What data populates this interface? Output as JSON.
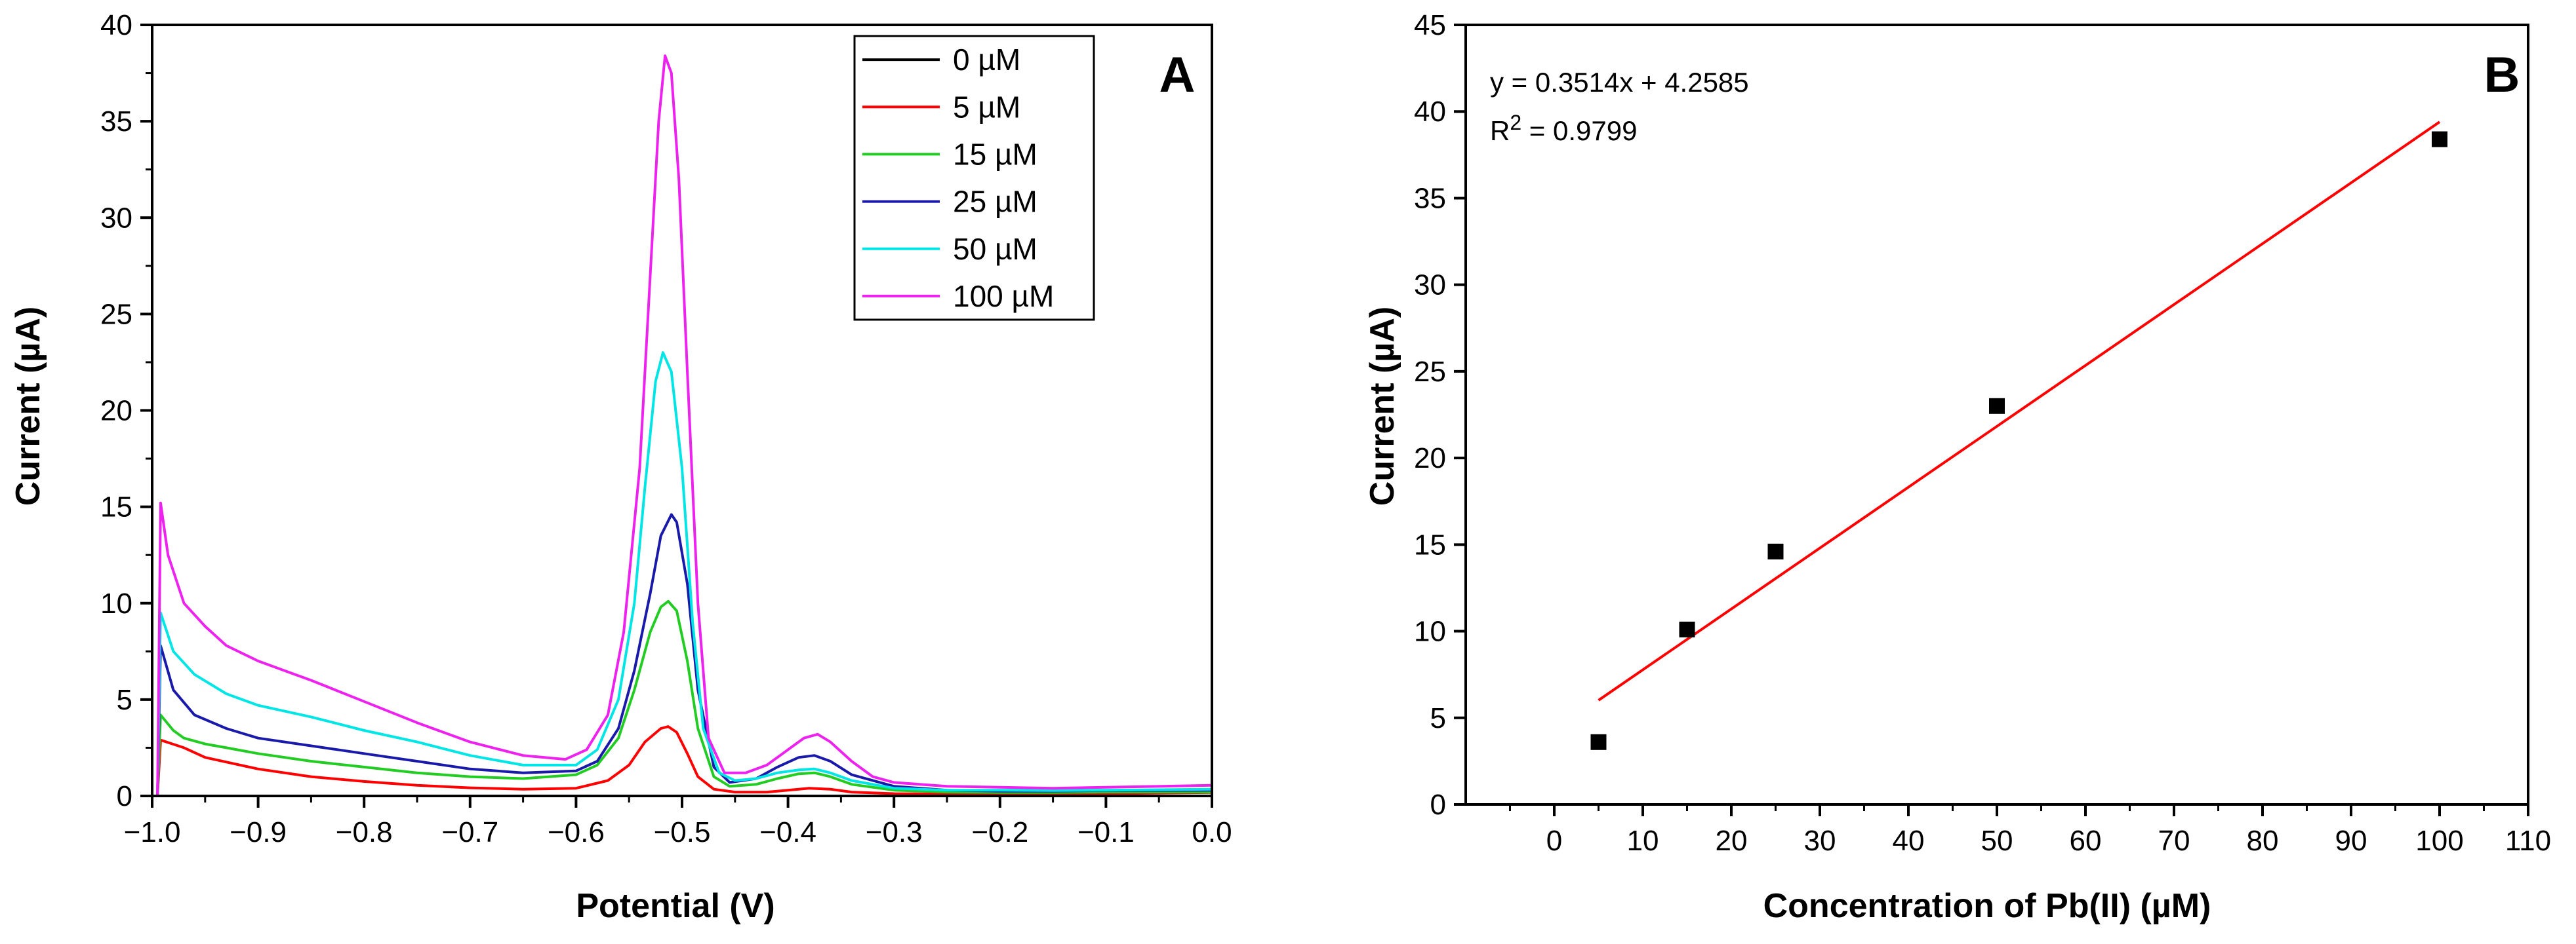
{
  "chart_data": [
    {
      "panel": "A",
      "type": "line",
      "xlabel": "Potential (V)",
      "ylabel": "Current (µA)",
      "xlim": [
        -1.0,
        0.0
      ],
      "ylim": [
        0,
        40
      ],
      "x_ticks": [
        -1.0,
        -0.9,
        -0.8,
        -0.7,
        -0.6,
        -0.5,
        -0.4,
        -0.3,
        -0.2,
        -0.1,
        0.0
      ],
      "x_tick_labels": [
        "−1.0",
        "−0.9",
        "−0.8",
        "−0.7",
        "−0.6",
        "−0.5",
        "−0.4",
        "−0.3",
        "−0.2",
        "−0.1",
        "0.0"
      ],
      "y_ticks": [
        0,
        5,
        10,
        15,
        20,
        25,
        30,
        35,
        40
      ],
      "y_tick_labels": [
        "0",
        "5",
        "10",
        "15",
        "20",
        "25",
        "30",
        "35",
        "40"
      ],
      "legend_position": "top-right",
      "series": [
        {
          "name": "0 µM",
          "color": "#000000",
          "points": [
            [
              -1.0,
              0.0
            ],
            [
              -0.9,
              0.0
            ],
            [
              -0.8,
              0.0
            ],
            [
              -0.7,
              0.0
            ],
            [
              -0.6,
              0.0
            ],
            [
              -0.5,
              0.0
            ],
            [
              -0.4,
              0.0
            ],
            [
              -0.3,
              0.0
            ],
            [
              -0.2,
              0.0
            ],
            [
              -0.1,
              0.0
            ],
            [
              0.0,
              0.0
            ]
          ]
        },
        {
          "name": "5 µM",
          "color": "#ff0000",
          "points": [
            [
              -0.995,
              0.0
            ],
            [
              -0.992,
              2.9
            ],
            [
              -0.97,
              2.5
            ],
            [
              -0.95,
              2.0
            ],
            [
              -0.9,
              1.4
            ],
            [
              -0.85,
              1.0
            ],
            [
              -0.8,
              0.75
            ],
            [
              -0.75,
              0.55
            ],
            [
              -0.7,
              0.42
            ],
            [
              -0.65,
              0.35
            ],
            [
              -0.6,
              0.4
            ],
            [
              -0.57,
              0.8
            ],
            [
              -0.55,
              1.6
            ],
            [
              -0.535,
              2.8
            ],
            [
              -0.52,
              3.5
            ],
            [
              -0.513,
              3.6
            ],
            [
              -0.505,
              3.3
            ],
            [
              -0.495,
              2.2
            ],
            [
              -0.485,
              1.0
            ],
            [
              -0.47,
              0.35
            ],
            [
              -0.45,
              0.2
            ],
            [
              -0.42,
              0.2
            ],
            [
              -0.4,
              0.3
            ],
            [
              -0.38,
              0.4
            ],
            [
              -0.36,
              0.35
            ],
            [
              -0.34,
              0.2
            ],
            [
              -0.3,
              0.12
            ],
            [
              -0.25,
              0.1
            ],
            [
              -0.2,
              0.1
            ],
            [
              -0.15,
              0.1
            ],
            [
              -0.1,
              0.12
            ],
            [
              0.0,
              0.18
            ]
          ]
        },
        {
          "name": "15 µM",
          "color": "#22cc22",
          "points": [
            [
              -0.995,
              0.0
            ],
            [
              -0.992,
              4.2
            ],
            [
              -0.98,
              3.4
            ],
            [
              -0.97,
              3.0
            ],
            [
              -0.95,
              2.7
            ],
            [
              -0.93,
              2.5
            ],
            [
              -0.9,
              2.2
            ],
            [
              -0.85,
              1.8
            ],
            [
              -0.8,
              1.5
            ],
            [
              -0.75,
              1.2
            ],
            [
              -0.7,
              1.0
            ],
            [
              -0.65,
              0.9
            ],
            [
              -0.6,
              1.1
            ],
            [
              -0.58,
              1.6
            ],
            [
              -0.56,
              3.0
            ],
            [
              -0.545,
              5.5
            ],
            [
              -0.53,
              8.5
            ],
            [
              -0.52,
              9.8
            ],
            [
              -0.513,
              10.1
            ],
            [
              -0.505,
              9.6
            ],
            [
              -0.495,
              7.0
            ],
            [
              -0.485,
              3.5
            ],
            [
              -0.47,
              1.0
            ],
            [
              -0.455,
              0.5
            ],
            [
              -0.43,
              0.6
            ],
            [
              -0.41,
              0.9
            ],
            [
              -0.39,
              1.15
            ],
            [
              -0.375,
              1.2
            ],
            [
              -0.36,
              1.0
            ],
            [
              -0.34,
              0.6
            ],
            [
              -0.3,
              0.3
            ],
            [
              -0.25,
              0.2
            ],
            [
              -0.2,
              0.18
            ],
            [
              -0.15,
              0.18
            ],
            [
              -0.1,
              0.2
            ],
            [
              0.0,
              0.2
            ]
          ]
        },
        {
          "name": "25 µM",
          "color": "#1a1aaa",
          "points": [
            [
              -0.995,
              0.0
            ],
            [
              -0.992,
              7.8
            ],
            [
              -0.98,
              5.5
            ],
            [
              -0.96,
              4.2
            ],
            [
              -0.93,
              3.5
            ],
            [
              -0.9,
              3.0
            ],
            [
              -0.85,
              2.6
            ],
            [
              -0.8,
              2.2
            ],
            [
              -0.75,
              1.8
            ],
            [
              -0.7,
              1.4
            ],
            [
              -0.65,
              1.2
            ],
            [
              -0.6,
              1.3
            ],
            [
              -0.58,
              1.8
            ],
            [
              -0.56,
              3.5
            ],
            [
              -0.545,
              6.5
            ],
            [
              -0.53,
              10.5
            ],
            [
              -0.52,
              13.5
            ],
            [
              -0.51,
              14.6
            ],
            [
              -0.505,
              14.2
            ],
            [
              -0.495,
              11.0
            ],
            [
              -0.485,
              5.5
            ],
            [
              -0.47,
              1.5
            ],
            [
              -0.455,
              0.7
            ],
            [
              -0.43,
              0.9
            ],
            [
              -0.41,
              1.5
            ],
            [
              -0.39,
              2.0
            ],
            [
              -0.375,
              2.1
            ],
            [
              -0.36,
              1.8
            ],
            [
              -0.34,
              1.1
            ],
            [
              -0.3,
              0.5
            ],
            [
              -0.25,
              0.3
            ],
            [
              -0.2,
              0.25
            ],
            [
              -0.15,
              0.25
            ],
            [
              -0.1,
              0.28
            ],
            [
              0.0,
              0.3
            ]
          ]
        },
        {
          "name": "50 µM",
          "color": "#00e5e5",
          "points": [
            [
              -0.995,
              0.0
            ],
            [
              -0.992,
              9.5
            ],
            [
              -0.98,
              7.5
            ],
            [
              -0.96,
              6.3
            ],
            [
              -0.93,
              5.3
            ],
            [
              -0.9,
              4.7
            ],
            [
              -0.85,
              4.1
            ],
            [
              -0.8,
              3.4
            ],
            [
              -0.75,
              2.8
            ],
            [
              -0.7,
              2.1
            ],
            [
              -0.65,
              1.6
            ],
            [
              -0.6,
              1.6
            ],
            [
              -0.58,
              2.4
            ],
            [
              -0.56,
              5.0
            ],
            [
              -0.545,
              10.0
            ],
            [
              -0.535,
              16.0
            ],
            [
              -0.525,
              21.5
            ],
            [
              -0.518,
              23.0
            ],
            [
              -0.51,
              22.0
            ],
            [
              -0.5,
              17.0
            ],
            [
              -0.49,
              9.0
            ],
            [
              -0.48,
              3.5
            ],
            [
              -0.465,
              1.2
            ],
            [
              -0.45,
              0.8
            ],
            [
              -0.43,
              0.9
            ],
            [
              -0.41,
              1.2
            ],
            [
              -0.39,
              1.35
            ],
            [
              -0.375,
              1.4
            ],
            [
              -0.36,
              1.2
            ],
            [
              -0.34,
              0.8
            ],
            [
              -0.3,
              0.4
            ],
            [
              -0.25,
              0.3
            ],
            [
              -0.2,
              0.3
            ],
            [
              -0.15,
              0.28
            ],
            [
              -0.1,
              0.3
            ],
            [
              0.0,
              0.35
            ]
          ]
        },
        {
          "name": "100 µM",
          "color": "#ee22ee",
          "points": [
            [
              -0.995,
              0.0
            ],
            [
              -0.992,
              15.2
            ],
            [
              -0.985,
              12.5
            ],
            [
              -0.97,
              10.0
            ],
            [
              -0.95,
              8.8
            ],
            [
              -0.93,
              7.8
            ],
            [
              -0.9,
              7.0
            ],
            [
              -0.87,
              6.4
            ],
            [
              -0.85,
              6.0
            ],
            [
              -0.8,
              4.9
            ],
            [
              -0.75,
              3.8
            ],
            [
              -0.7,
              2.8
            ],
            [
              -0.65,
              2.1
            ],
            [
              -0.61,
              1.9
            ],
            [
              -0.59,
              2.4
            ],
            [
              -0.57,
              4.2
            ],
            [
              -0.555,
              8.5
            ],
            [
              -0.54,
              17.0
            ],
            [
              -0.53,
              27.0
            ],
            [
              -0.522,
              35.0
            ],
            [
              -0.516,
              38.4
            ],
            [
              -0.51,
              37.5
            ],
            [
              -0.503,
              32.0
            ],
            [
              -0.495,
              22.0
            ],
            [
              -0.485,
              10.0
            ],
            [
              -0.475,
              3.0
            ],
            [
              -0.46,
              1.2
            ],
            [
              -0.44,
              1.2
            ],
            [
              -0.42,
              1.6
            ],
            [
              -0.4,
              2.4
            ],
            [
              -0.385,
              3.0
            ],
            [
              -0.372,
              3.2
            ],
            [
              -0.36,
              2.8
            ],
            [
              -0.34,
              1.8
            ],
            [
              -0.32,
              1.0
            ],
            [
              -0.3,
              0.7
            ],
            [
              -0.25,
              0.5
            ],
            [
              -0.2,
              0.45
            ],
            [
              -0.15,
              0.4
            ],
            [
              -0.1,
              0.45
            ],
            [
              0.0,
              0.55
            ]
          ]
        }
      ]
    },
    {
      "panel": "B",
      "type": "scatter",
      "xlabel": "Concentration of Pb(II) (µM)",
      "ylabel": "Current (µA)",
      "xlim": [
        -10,
        110
      ],
      "ylim": [
        0,
        45
      ],
      "x_ticks": [
        0,
        10,
        20,
        30,
        40,
        50,
        60,
        70,
        80,
        90,
        100,
        110
      ],
      "y_ticks": [
        0,
        5,
        10,
        15,
        20,
        25,
        30,
        35,
        40,
        45
      ],
      "x_minor_ticks": [
        -5,
        5,
        15,
        25,
        35,
        45,
        55,
        65,
        75,
        85,
        95,
        105
      ],
      "points": [
        [
          5,
          3.6
        ],
        [
          15,
          10.1
        ],
        [
          25,
          14.6
        ],
        [
          50,
          23.0
        ],
        [
          100,
          38.4
        ]
      ],
      "fit": {
        "slope": 0.3514,
        "intercept": 4.2585,
        "x_range": [
          5,
          100
        ],
        "color": "#ff0000"
      },
      "marker_color": "#000000"
    }
  ],
  "panel_a": {
    "letter": "A"
  },
  "panel_b": {
    "letter": "B",
    "equation": "y = 0.3514x + 4.2585",
    "r2_prefix": "R",
    "r2_sup": "2",
    "r2_value": " = 0.9799"
  }
}
